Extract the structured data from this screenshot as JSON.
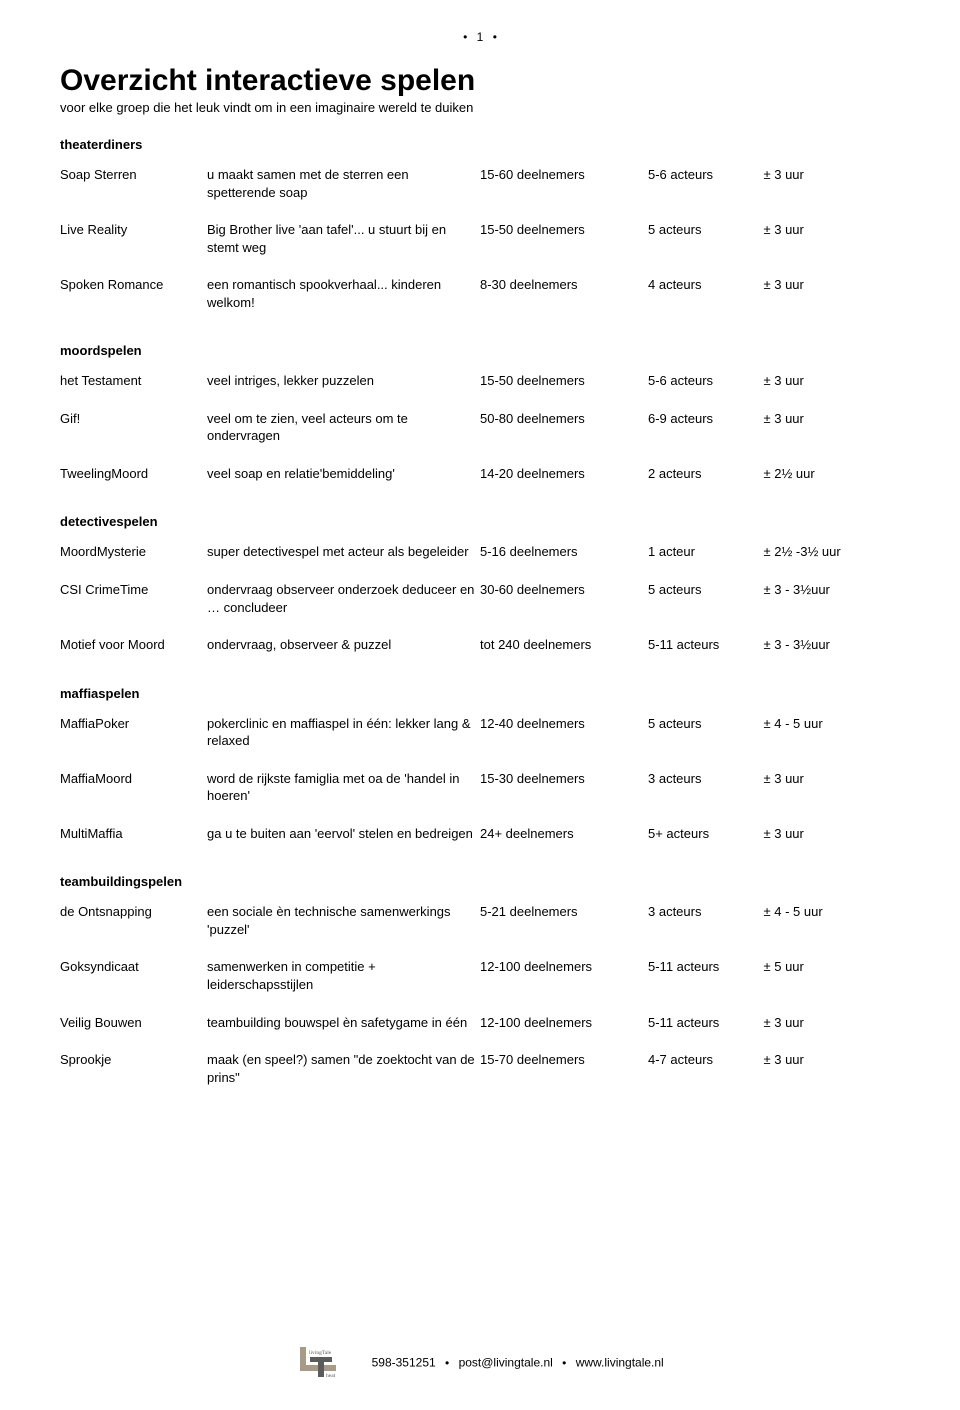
{
  "pageNumber": "1",
  "title": "Overzicht interactieve spelen",
  "subtitle": "voor elke groep die het leuk vindt om in een imaginaire wereld te duiken",
  "sections": [
    {
      "heading": "theaterdiners",
      "rows": [
        {
          "name": "Soap Sterren",
          "desc": "u maakt samen met de sterren een spetterende soap",
          "deelnemers": "15-60 deelnemers",
          "acteurs": "5-6 acteurs",
          "duur": "± 3 uur"
        },
        {
          "name": "Live Reality",
          "desc": "Big Brother live 'aan tafel'... u stuurt bij en stemt weg",
          "deelnemers": "15-50 deelnemers",
          "acteurs": "5 acteurs",
          "duur": "± 3 uur"
        },
        {
          "name": "Spoken Romance",
          "desc": "een romantisch spookverhaal... kinderen welkom!",
          "deelnemers": "8-30 deelnemers",
          "acteurs": "4 acteurs",
          "duur": "± 3 uur"
        }
      ]
    },
    {
      "heading": "moordspelen",
      "rows": [
        {
          "name": "het Testament",
          "desc": "veel intriges, lekker puzzelen",
          "deelnemers": "15-50 deelnemers",
          "acteurs": "5-6 acteurs",
          "duur": "± 3 uur"
        },
        {
          "name": "Gif!",
          "desc": "veel om te zien, veel acteurs om te ondervragen",
          "deelnemers": "50-80 deelnemers",
          "acteurs": "6-9 acteurs",
          "duur": "± 3 uur"
        },
        {
          "name": "TweelingMoord",
          "desc": "veel soap en relatie'bemiddeling'",
          "deelnemers": "14-20 deelnemers",
          "acteurs": "2 acteurs",
          "duur": "± 2½ uur"
        }
      ]
    },
    {
      "heading": "detectivespelen",
      "rows": [
        {
          "name": "MoordMysterie",
          "desc": "super detectivespel met acteur als begeleider",
          "deelnemers": "5-16 deelnemers",
          "acteurs": "1 acteur",
          "duur": "± 2½ -3½ uur"
        },
        {
          "name": "CSI CrimeTime",
          "desc": "ondervraag observeer onderzoek deduceer en … concludeer",
          "deelnemers": "30-60 deelnemers",
          "acteurs": "5 acteurs",
          "duur": "± 3 - 3½uur"
        },
        {
          "name": "Motief voor Moord",
          "desc": "ondervraag, observeer & puzzel",
          "deelnemers": "tot 240 deelnemers",
          "acteurs": "5-11 acteurs",
          "duur": "± 3 - 3½uur"
        }
      ]
    },
    {
      "heading": "maffiaspelen",
      "rows": [
        {
          "name": "MaffiaPoker",
          "desc": "pokerclinic en maffiaspel in één: lekker lang & relaxed",
          "deelnemers": "12-40 deelnemers",
          "acteurs": "5 acteurs",
          "duur": "± 4 - 5 uur"
        },
        {
          "name": "MaffiaMoord",
          "desc": "word de rijkste famiglia met oa de 'handel in hoeren'",
          "deelnemers": "15-30 deelnemers",
          "acteurs": "3 acteurs",
          "duur": "± 3 uur"
        },
        {
          "name": "MultiMaffia",
          "desc": "ga u te buiten aan 'eervol' stelen en bedreigen",
          "deelnemers": "24+ deelnemers",
          "acteurs": "5+ acteurs",
          "duur": "± 3 uur"
        }
      ]
    },
    {
      "heading": "teambuildingspelen",
      "rows": [
        {
          "name": "de Ontsnapping",
          "desc": "een sociale èn technische samenwerkings 'puzzel'",
          "deelnemers": "5-21 deelnemers",
          "acteurs": "3 acteurs",
          "duur": "± 4 - 5 uur"
        },
        {
          "name": "Goksyndicaat",
          "desc": "samenwerken in competitie + leiderschapsstijlen",
          "deelnemers": "12-100 deelnemers",
          "acteurs": "5-11 acteurs",
          "duur": "± 5 uur"
        },
        {
          "name": "Veilig Bouwen",
          "desc": "teambuilding bouwspel èn safetygame in één",
          "deelnemers": "12-100 deelnemers",
          "acteurs": "5-11 acteurs",
          "duur": "± 3 uur"
        },
        {
          "name": "Sprookje",
          "desc": "maak (en speel?) samen \"de zoektocht van de prins\"",
          "deelnemers": "15-70 deelnemers",
          "acteurs": "4-7 acteurs",
          "duur": "± 3 uur"
        }
      ]
    }
  ],
  "footer": {
    "phone": "598-351251",
    "email": "post@livingtale.nl",
    "web": "www.livingtale.nl",
    "logoTop": "livingTale",
    "logoBottom": "heat"
  }
}
